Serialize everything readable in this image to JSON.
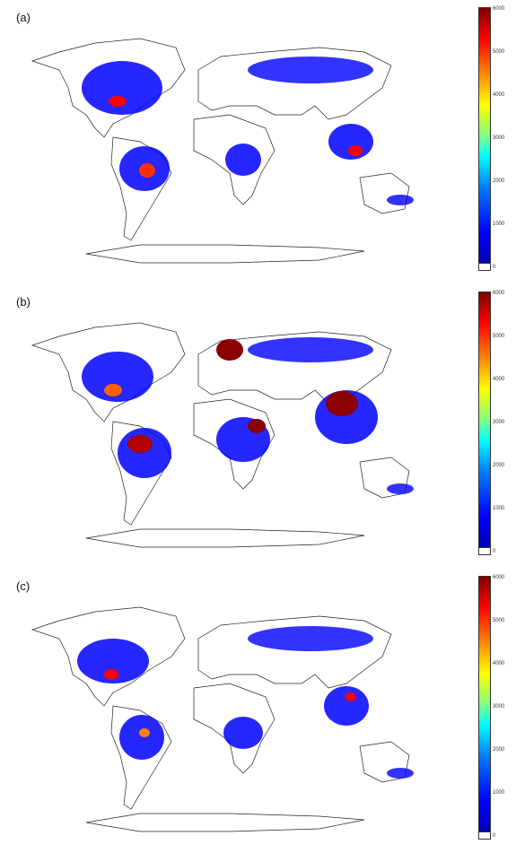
{
  "panels": [
    {
      "label": "(a)",
      "colorbar_ticks": [
        "6000",
        "5000",
        "4000",
        "3000",
        "2000",
        "1000",
        "0"
      ]
    },
    {
      "label": "(b)",
      "colorbar_ticks": [
        "6000",
        "5000",
        "4000",
        "3000",
        "2000",
        "1000",
        "0"
      ]
    },
    {
      "label": "(c)",
      "colorbar_ticks": [
        "6000",
        "5000",
        "4000",
        "3000",
        "2000",
        "1000",
        "0"
      ]
    }
  ],
  "colorbar": {
    "min": 0,
    "max": 6000,
    "colormap": "jet",
    "zero_color": "#ffffff"
  },
  "colors": {
    "coast": "#222222",
    "low": "#0000ff",
    "high": "#8b0000"
  }
}
